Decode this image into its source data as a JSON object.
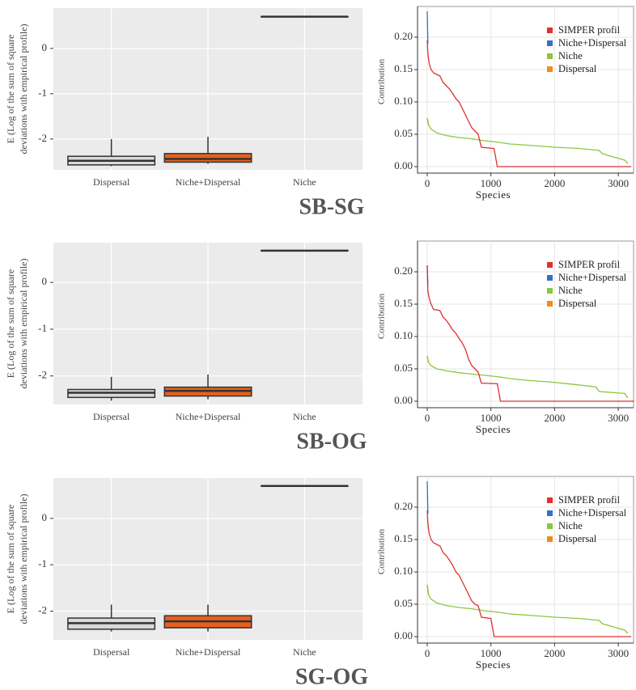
{
  "chart_data": [
    {
      "type": "box",
      "title": "SB-SG",
      "ylabel": [
        "E (Log of the sum of square",
        "deviations with empirical profile)"
      ],
      "categories": [
        "Dispersal",
        "Niche+Dispersal",
        "Niche"
      ],
      "boxes": [
        {
          "min": -2.6,
          "q1": -2.57,
          "median": -2.48,
          "q3": -2.38,
          "max": -2.0
        },
        {
          "min": -2.55,
          "q1": -2.51,
          "median": -2.44,
          "q3": -2.32,
          "max": -1.95
        },
        {
          "min": 0.7,
          "q1": 0.7,
          "median": 0.7,
          "q3": 0.7,
          "max": 0.7
        }
      ],
      "colors": [
        "#d9d9d9",
        "#e8601c",
        "#d9d9d9"
      ],
      "ylim": [
        -2.68,
        0.89
      ],
      "yticks": [
        -2,
        -1,
        0
      ],
      "grid": true
    },
    {
      "type": "line",
      "xlabel": "Species",
      "ylabel": "Contribution",
      "series": [
        {
          "name": "SIMPER profil",
          "color": "#e03030",
          "x": [
            0,
            10,
            30,
            60,
            100,
            200,
            250,
            300,
            350,
            400,
            450,
            500,
            550,
            600,
            650,
            700,
            750,
            800,
            850,
            1050,
            1100,
            3200
          ],
          "values": [
            0.195,
            0.175,
            0.16,
            0.15,
            0.145,
            0.14,
            0.13,
            0.125,
            0.12,
            0.113,
            0.105,
            0.1,
            0.09,
            0.08,
            0.07,
            0.06,
            0.055,
            0.05,
            0.03,
            0.028,
            0,
            0
          ]
        },
        {
          "name": "Niche+Dispersal",
          "color": "#3a6fc4",
          "x": [
            0,
            10
          ],
          "values": [
            0.24,
            0.19
          ]
        },
        {
          "name": "Niche",
          "color": "#8cc63f",
          "x": [
            0,
            20,
            60,
            150,
            300,
            500,
            700,
            900,
            1100,
            1300,
            1600,
            2000,
            2400,
            2700,
            2750,
            3100,
            3150
          ],
          "values": [
            0.075,
            0.065,
            0.058,
            0.052,
            0.048,
            0.045,
            0.043,
            0.04,
            0.038,
            0.035,
            0.033,
            0.03,
            0.028,
            0.025,
            0.02,
            0.01,
            0.005
          ]
        },
        {
          "name": "Dispersal",
          "color": "#f08c1e",
          "x": [
            0,
            20
          ],
          "values": [
            0.075,
            0.065
          ]
        }
      ],
      "xlim": [
        -152,
        3240
      ],
      "xticks": [
        0,
        1000,
        2000,
        3000
      ],
      "ylim": [
        -0.01,
        0.2475
      ],
      "yticks": [
        {
          "value": 0,
          "label": "0.00"
        },
        {
          "value": 0.05,
          "label": "0.05"
        },
        {
          "value": 0.1,
          "label": "0.10"
        },
        {
          "value": 0.15,
          "label": "0.15"
        },
        {
          "value": 0.2,
          "label": "0.20"
        }
      ],
      "legend": "top-right",
      "grid": true
    },
    {
      "type": "box",
      "title": "SB-OG",
      "ylabel": [
        "E (Log of the sum of square",
        "deviations with empirical profile)"
      ],
      "categories": [
        "Dispersal",
        "Niche+Dispersal",
        "Niche"
      ],
      "boxes": [
        {
          "min": -2.53,
          "q1": -2.46,
          "median": -2.36,
          "q3": -2.29,
          "max": -2.02
        },
        {
          "min": -2.5,
          "q1": -2.43,
          "median": -2.32,
          "q3": -2.24,
          "max": -1.97
        },
        {
          "min": 0.68,
          "q1": 0.68,
          "median": 0.68,
          "q3": 0.68,
          "max": 0.68
        }
      ],
      "colors": [
        "#d9d9d9",
        "#e8601c",
        "#d9d9d9"
      ],
      "ylim": [
        -2.61,
        0.85
      ],
      "yticks": [
        -2,
        -1,
        0
      ],
      "grid": true
    },
    {
      "type": "line",
      "xlabel": "Species",
      "ylabel": "Contribution",
      "series": [
        {
          "name": "SIMPER profil",
          "color": "#e03030",
          "x": [
            0,
            10,
            30,
            60,
            100,
            200,
            250,
            300,
            350,
            400,
            450,
            500,
            550,
            600,
            650,
            700,
            750,
            800,
            850,
            1100,
            1150,
            3250
          ],
          "values": [
            0.21,
            0.17,
            0.16,
            0.15,
            0.142,
            0.14,
            0.13,
            0.125,
            0.118,
            0.11,
            0.105,
            0.097,
            0.09,
            0.08,
            0.065,
            0.055,
            0.05,
            0.045,
            0.028,
            0.027,
            0,
            0
          ]
        },
        {
          "name": "Niche+Dispersal",
          "color": "#3a6fc4",
          "x": [
            0,
            10
          ],
          "values": [
            0.21,
            0.18
          ]
        },
        {
          "name": "Niche",
          "color": "#8cc63f",
          "x": [
            0,
            20,
            60,
            150,
            300,
            500,
            700,
            900,
            1100,
            1300,
            1600,
            1900,
            2300,
            2650,
            2700,
            3100,
            3150
          ],
          "values": [
            0.07,
            0.06,
            0.055,
            0.05,
            0.047,
            0.044,
            0.042,
            0.04,
            0.038,
            0.035,
            0.032,
            0.03,
            0.026,
            0.022,
            0.015,
            0.012,
            0.005
          ]
        },
        {
          "name": "Dispersal",
          "color": "#f08c1e",
          "x": [
            0,
            20
          ],
          "values": [
            0.07,
            0.06
          ]
        }
      ],
      "xlim": [
        -152,
        3240
      ],
      "xticks": [
        0,
        1000,
        2000,
        3000
      ],
      "ylim": [
        -0.01,
        0.2475
      ],
      "yticks": [
        {
          "value": 0,
          "label": "0.00"
        },
        {
          "value": 0.05,
          "label": "0.05"
        },
        {
          "value": 0.1,
          "label": "0.10"
        },
        {
          "value": 0.15,
          "label": "0.15"
        },
        {
          "value": 0.2,
          "label": "0.20"
        }
      ],
      "legend": "top-right",
      "grid": true
    },
    {
      "type": "box",
      "title": "SG-OG",
      "ylabel": [
        "E (Log of the sum of square",
        "deviations with empirical profile)"
      ],
      "categories": [
        "Dispersal",
        "Niche+Dispersal",
        "Niche"
      ],
      "boxes": [
        {
          "min": -2.44,
          "q1": -2.39,
          "median": -2.26,
          "q3": -2.15,
          "max": -1.86
        },
        {
          "min": -2.44,
          "q1": -2.36,
          "median": -2.22,
          "q3": -2.1,
          "max": -1.86
        },
        {
          "min": 0.7,
          "q1": 0.7,
          "median": 0.7,
          "q3": 0.7,
          "max": 0.7
        }
      ],
      "colors": [
        "#d9d9d9",
        "#e8601c",
        "#d9d9d9"
      ],
      "ylim": [
        -2.62,
        0.87
      ],
      "yticks": [
        -2,
        -1,
        0
      ],
      "grid": true
    },
    {
      "type": "line",
      "xlabel": "Species",
      "ylabel": "Contribution",
      "series": [
        {
          "name": "SIMPER profil",
          "color": "#e03030",
          "x": [
            0,
            10,
            30,
            60,
            100,
            200,
            250,
            300,
            350,
            400,
            450,
            500,
            550,
            600,
            650,
            700,
            750,
            800,
            850,
            1000,
            1050,
            3200
          ],
          "values": [
            0.195,
            0.175,
            0.16,
            0.15,
            0.145,
            0.14,
            0.13,
            0.125,
            0.118,
            0.11,
            0.1,
            0.095,
            0.085,
            0.075,
            0.065,
            0.055,
            0.05,
            0.048,
            0.03,
            0.028,
            0,
            0
          ]
        },
        {
          "name": "Niche+Dispersal",
          "color": "#3a6fc4",
          "x": [
            0,
            10
          ],
          "values": [
            0.24,
            0.19
          ]
        },
        {
          "name": "Niche",
          "color": "#8cc63f",
          "x": [
            0,
            20,
            60,
            150,
            300,
            500,
            700,
            900,
            1100,
            1300,
            1600,
            2000,
            2400,
            2700,
            2750,
            3100,
            3150
          ],
          "values": [
            0.08,
            0.065,
            0.058,
            0.052,
            0.048,
            0.045,
            0.043,
            0.04,
            0.038,
            0.035,
            0.033,
            0.03,
            0.028,
            0.025,
            0.02,
            0.01,
            0.005
          ]
        },
        {
          "name": "Dispersal",
          "color": "#f08c1e",
          "x": [
            0,
            20
          ],
          "values": [
            0.08,
            0.065
          ]
        }
      ],
      "xlim": [
        -152,
        3240
      ],
      "xticks": [
        0,
        1000,
        2000,
        3000
      ],
      "ylim": [
        -0.01,
        0.2475
      ],
      "yticks": [
        {
          "value": 0,
          "label": "0.00"
        },
        {
          "value": 0.05,
          "label": "0.05"
        },
        {
          "value": 0.1,
          "label": "0.10"
        },
        {
          "value": 0.15,
          "label": "0.15"
        },
        {
          "value": 0.2,
          "label": "0.20"
        }
      ],
      "legend": "top-right",
      "grid": true
    }
  ]
}
